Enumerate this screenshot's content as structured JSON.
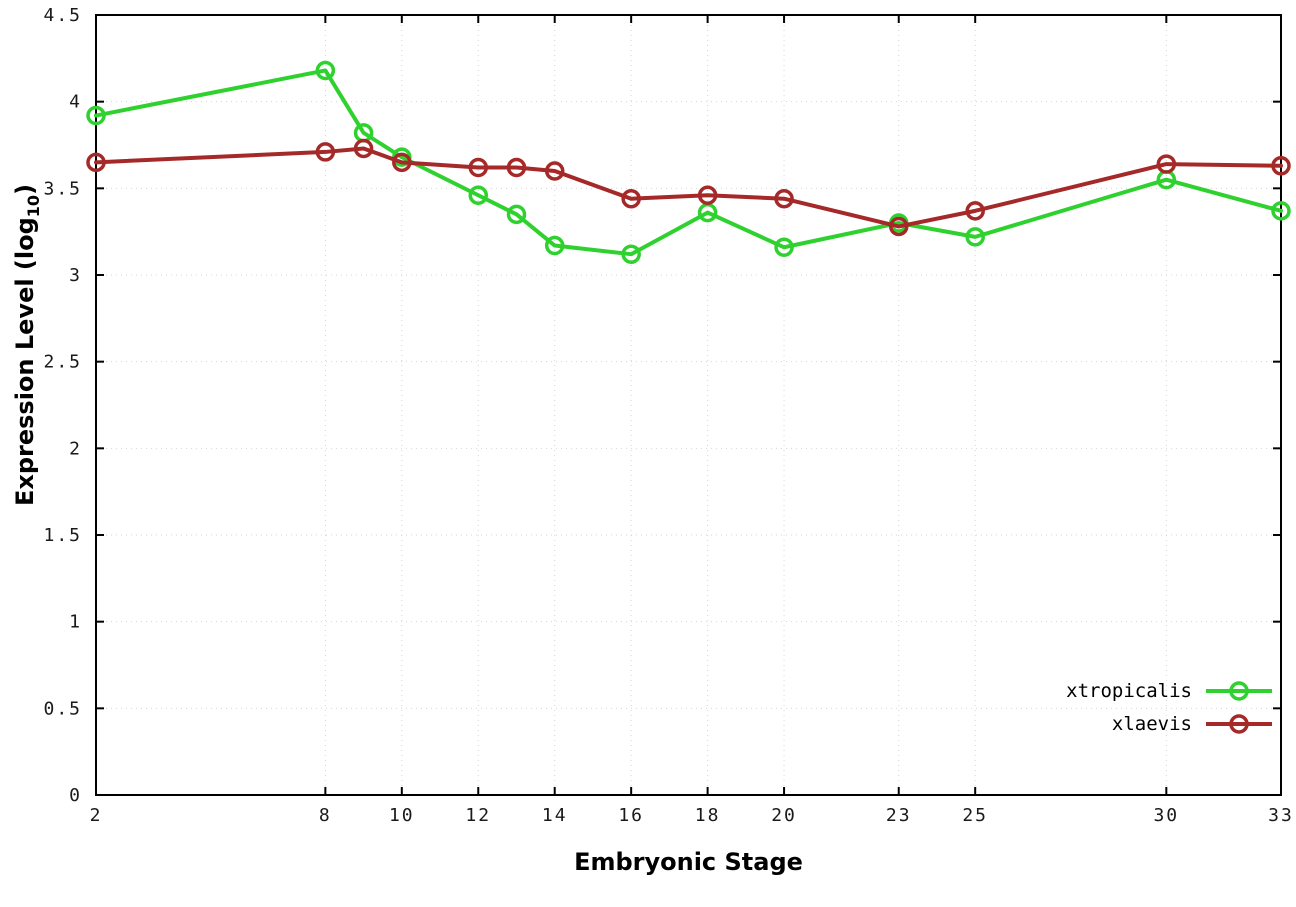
{
  "figure": {
    "xlabel": "Embryonic Stage",
    "ylabel_prefix": "Expression Level (log",
    "ylabel_sub": "10",
    "ylabel_suffix": ")"
  },
  "chart_data": {
    "type": "line",
    "title": "",
    "xlabel": "Embryonic Stage",
    "ylabel": "Expression Level (log10)",
    "x": [
      2,
      8,
      9,
      10,
      12,
      13,
      14,
      16,
      18,
      20,
      23,
      25,
      30,
      33
    ],
    "xticks": [
      2,
      8,
      10,
      12,
      14,
      16,
      18,
      20,
      23,
      25,
      30,
      33
    ],
    "yticks": [
      0,
      0.5,
      1,
      1.5,
      2,
      2.5,
      3,
      3.5,
      4,
      4.5
    ],
    "xlim": [
      2,
      33
    ],
    "ylim": [
      0,
      4.5
    ],
    "grid": true,
    "legend_position": "bottom-right",
    "series": [
      {
        "name": "xtropicalis",
        "color": "#2fd12f",
        "values": [
          3.92,
          4.18,
          3.82,
          3.68,
          3.46,
          3.35,
          3.17,
          3.12,
          3.36,
          3.16,
          3.3,
          3.22,
          3.55,
          3.37
        ]
      },
      {
        "name": "xlaevis",
        "color": "#a62929",
        "values": [
          3.65,
          3.71,
          3.73,
          3.65,
          3.62,
          3.62,
          3.6,
          3.44,
          3.46,
          3.44,
          3.28,
          3.37,
          3.64,
          3.63
        ]
      }
    ]
  }
}
